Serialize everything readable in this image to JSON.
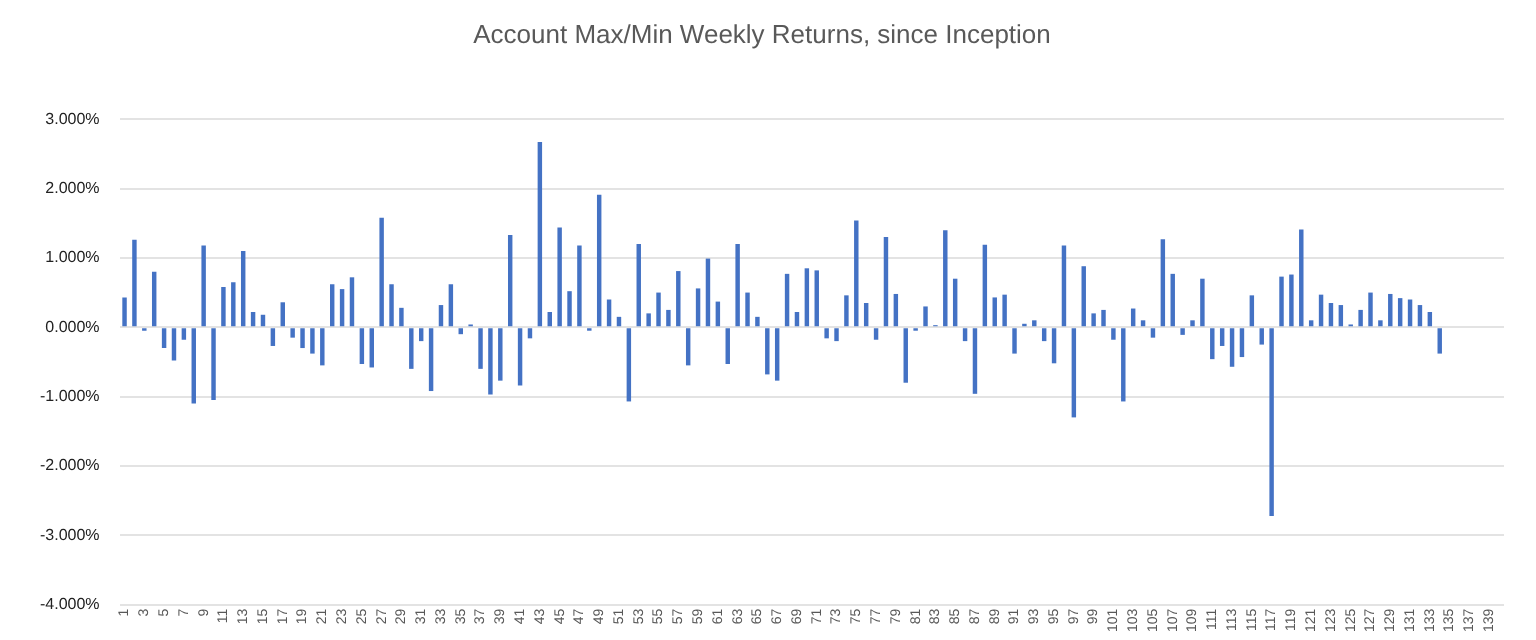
{
  "chart_data": {
    "type": "bar",
    "title": "Account Max/Min Weekly Returns, since Inception",
    "categories": [
      "1",
      null,
      "3",
      null,
      "5",
      null,
      "7",
      null,
      "9",
      null,
      "11",
      null,
      "13",
      null,
      "15",
      null,
      "17",
      null,
      "19",
      null,
      "21",
      null,
      "23",
      null,
      "25",
      null,
      "27",
      null,
      "29",
      null,
      "31",
      null,
      "33",
      null,
      "35",
      null,
      "37",
      null,
      "39",
      null,
      "41",
      null,
      "43",
      null,
      "45",
      null,
      "47",
      null,
      "49",
      null,
      "51",
      null,
      "53",
      null,
      "55",
      null,
      "57",
      null,
      "59",
      null,
      "61",
      null,
      "63",
      null,
      "65",
      null,
      "67",
      null,
      "69",
      null,
      "71",
      null,
      "73",
      null,
      "75",
      null,
      "77",
      null,
      "79",
      null,
      "81",
      null,
      "83",
      null,
      "85",
      null,
      "87",
      null,
      "89",
      null,
      "91",
      null,
      "93",
      null,
      "95",
      null,
      "97",
      null,
      "99",
      null,
      "101",
      null,
      "103",
      null,
      "105",
      null,
      "107",
      null,
      "109",
      null,
      "111",
      null,
      "113",
      null,
      "115",
      null,
      "117",
      null,
      "119",
      null,
      "121",
      null,
      "123",
      null,
      "125",
      null,
      "127",
      null,
      "129",
      null,
      "131",
      null,
      "133",
      null,
      "135",
      null,
      "137",
      null,
      "139",
      null
    ],
    "values": [
      0.43,
      1.26,
      -0.05,
      0.8,
      -0.3,
      -0.48,
      -0.18,
      -1.1,
      1.18,
      -1.05,
      0.58,
      0.65,
      1.1,
      0.22,
      0.18,
      -0.27,
      0.36,
      -0.15,
      -0.3,
      -0.38,
      -0.55,
      0.62,
      0.55,
      0.72,
      -0.53,
      -0.58,
      1.58,
      0.62,
      0.28,
      -0.6,
      -0.2,
      -0.92,
      0.32,
      0.62,
      -0.1,
      0.04,
      -0.6,
      -0.97,
      -0.77,
      1.33,
      -0.84,
      -0.16,
      2.67,
      0.22,
      1.44,
      0.52,
      1.18,
      -0.05,
      1.91,
      0.4,
      0.15,
      -1.07,
      1.2,
      0.2,
      0.5,
      0.25,
      0.81,
      -0.55,
      0.56,
      0.99,
      0.37,
      -0.53,
      1.2,
      0.5,
      0.15,
      -0.68,
      -0.77,
      0.77,
      0.22,
      0.85,
      0.82,
      -0.16,
      -0.2,
      0.46,
      1.54,
      0.35,
      -0.18,
      1.3,
      0.48,
      -0.8,
      -0.05,
      0.3,
      0.03,
      1.4,
      0.7,
      -0.2,
      -0.96,
      1.19,
      0.43,
      0.47,
      -0.38,
      0.05,
      0.1,
      -0.2,
      -0.52,
      1.18,
      -1.3,
      0.88,
      0.2,
      0.25,
      -0.18,
      -1.07,
      0.27,
      0.1,
      -0.15,
      1.27,
      0.77,
      -0.11,
      0.1,
      0.7,
      -0.46,
      -0.27,
      -0.57,
      -0.43,
      0.46,
      -0.25,
      -2.72,
      0.73,
      0.76,
      1.41,
      0.1,
      0.47,
      0.35,
      0.32,
      0.04,
      0.25,
      0.5,
      0.1,
      0.48,
      0.42,
      0.4,
      0.32,
      0.22,
      -0.38,
      null,
      null,
      null,
      null,
      null,
      null
    ],
    "color": "#4472c4",
    "ylim": [
      -4,
      3
    ],
    "yticks": [
      {
        "value": -4,
        "label": "-4.000%"
      },
      {
        "value": -3,
        "label": "-3.000%"
      },
      {
        "value": -2,
        "label": "-2.000%"
      },
      {
        "value": -1,
        "label": "-1.000%"
      },
      {
        "value": 0,
        "label": "0.000%"
      },
      {
        "value": 1,
        "label": "1.000%"
      },
      {
        "value": 2,
        "label": "2.000%"
      },
      {
        "value": 3,
        "label": "3.000%"
      }
    ],
    "grid": "y"
  }
}
